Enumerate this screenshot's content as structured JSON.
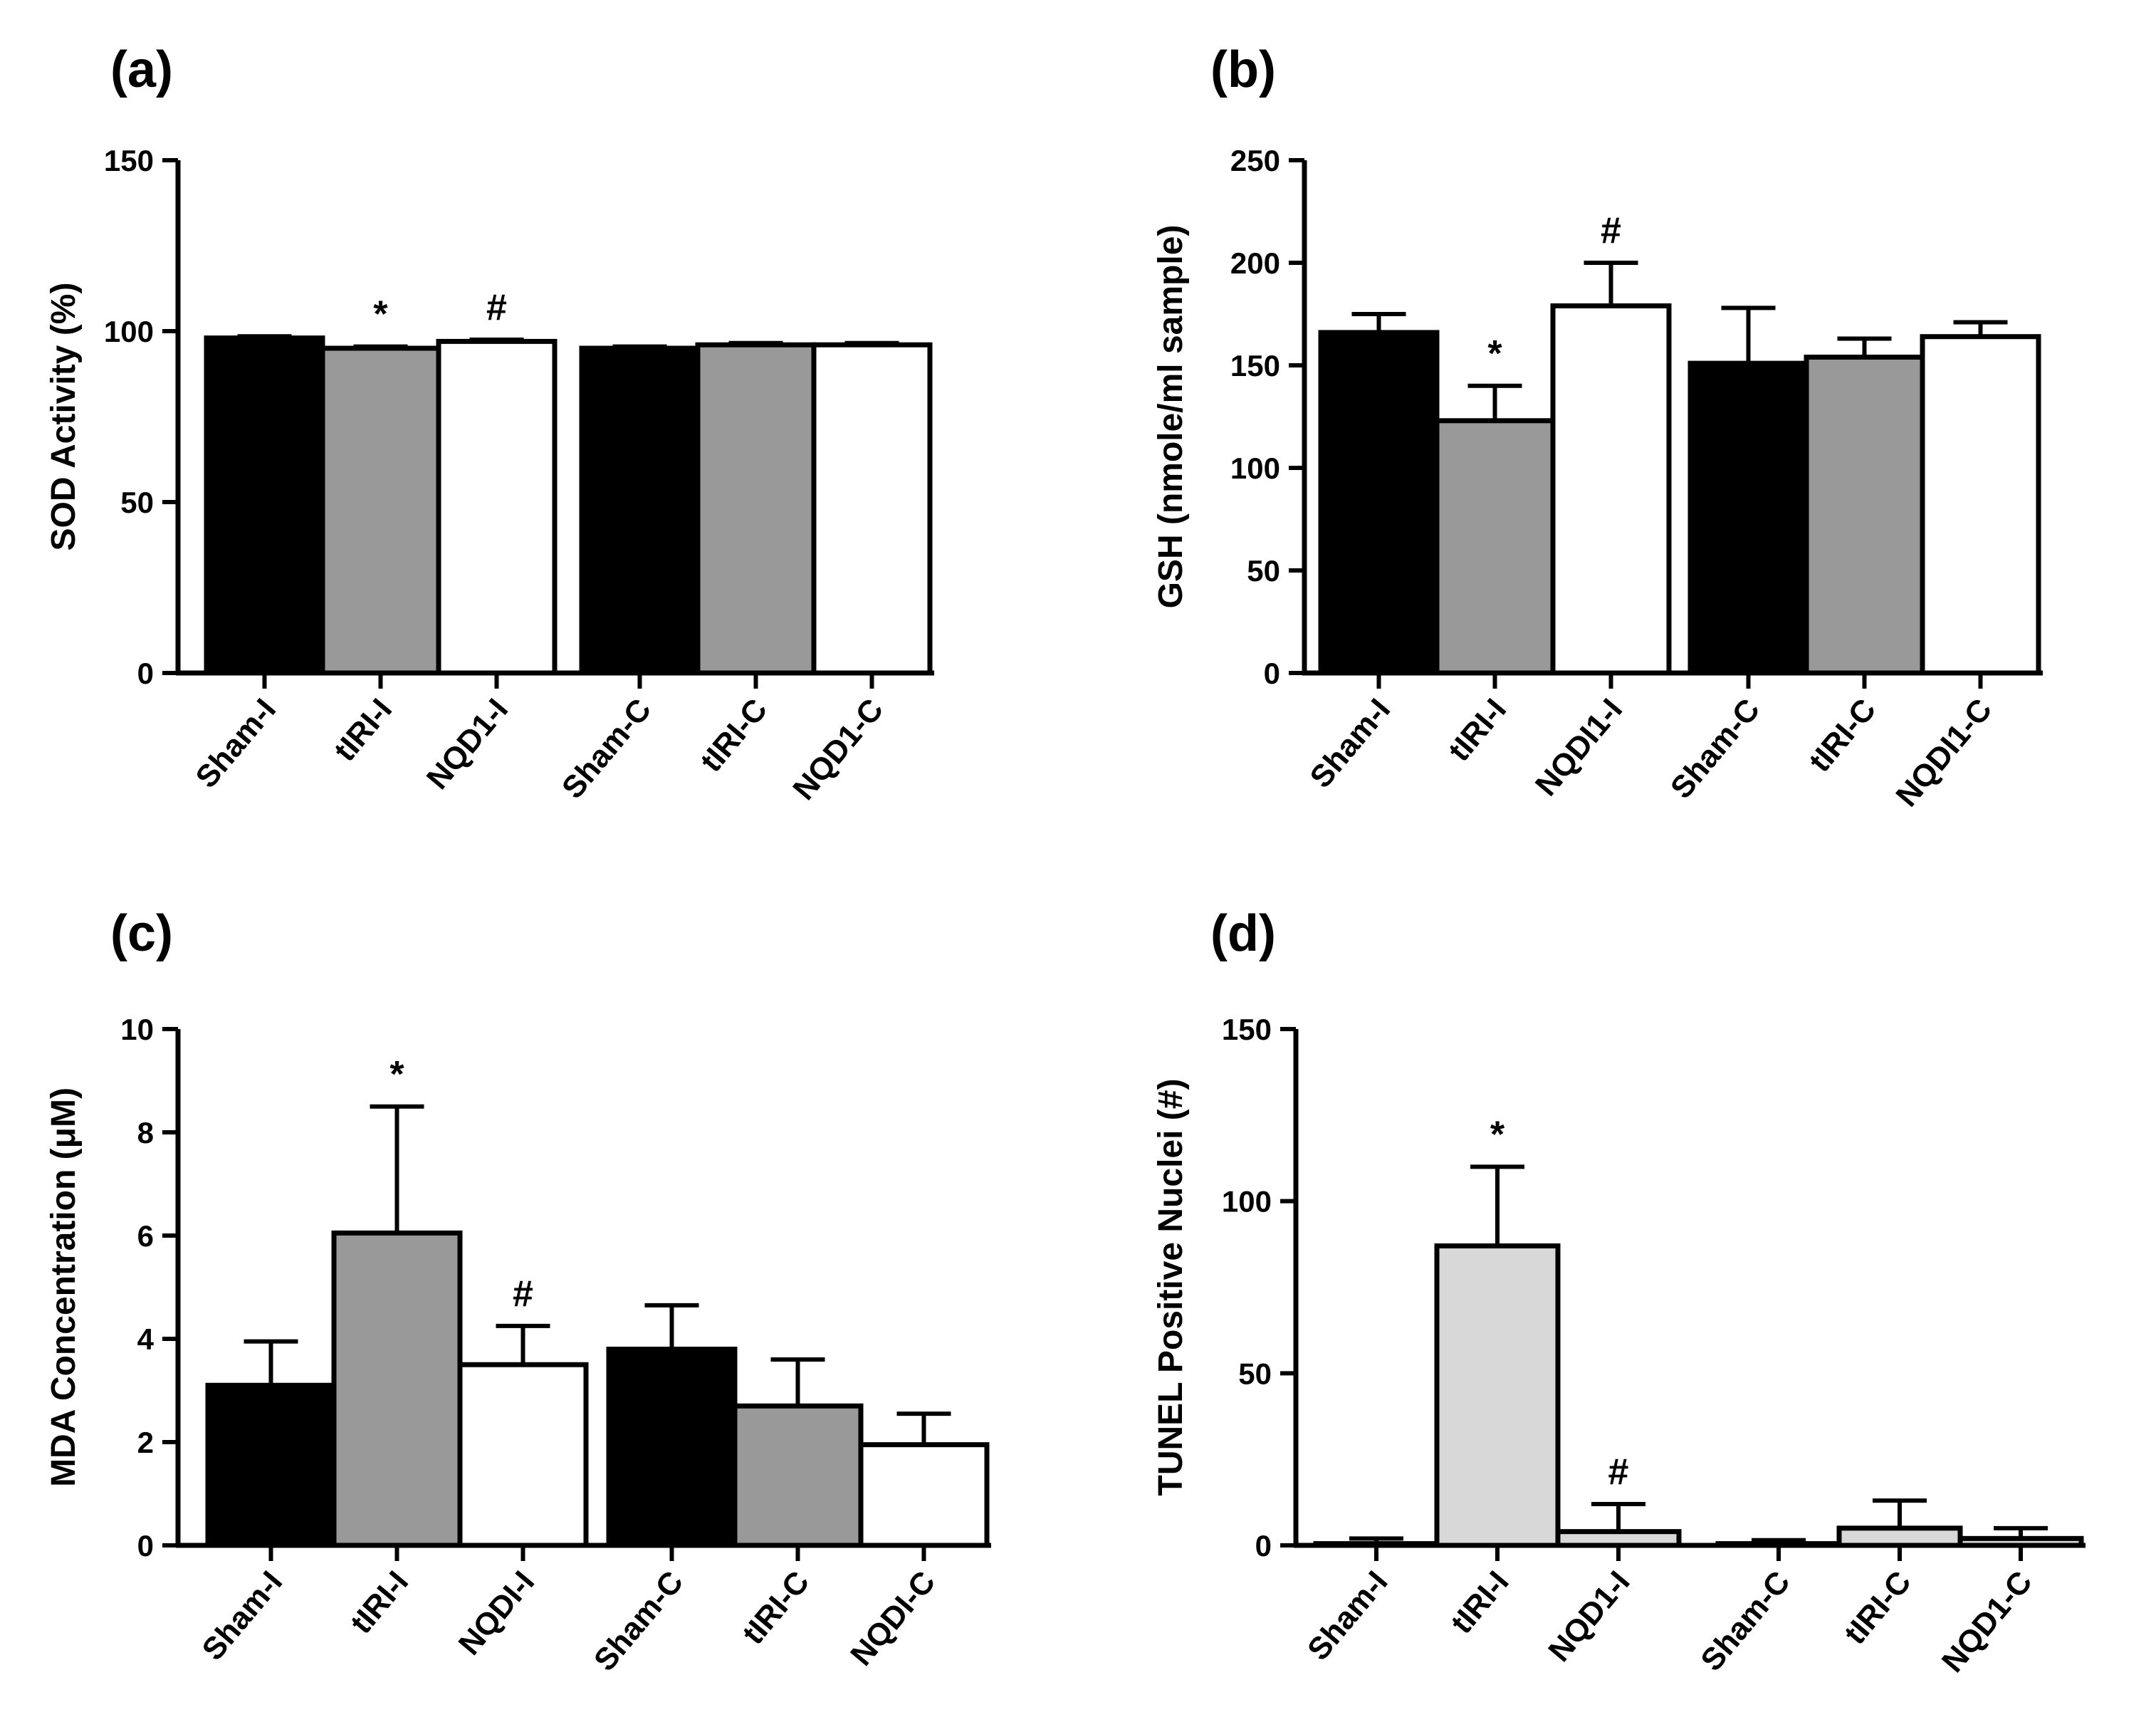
{
  "chart_data": [
    {
      "type": "bar",
      "panel_label": "(a)",
      "ylabel": "SOD Activity (%)",
      "ylim": [
        0,
        150
      ],
      "yticks": [
        "0",
        "50",
        "100",
        "150"
      ],
      "categories": [
        "Sham-I",
        "tIRI-I",
        "NQD1-I",
        "Sham-C",
        "tIRI-C",
        "NQD1-C"
      ],
      "values": [
        98,
        95,
        97,
        95,
        96,
        96
      ],
      "errors": [
        0.5,
        0.5,
        0.5,
        0.5,
        0.5,
        0.5
      ],
      "fills": [
        "#000000",
        "#999999",
        "#ffffff",
        "#000000",
        "#999999",
        "#ffffff"
      ],
      "annotations": [
        "",
        "*",
        "#",
        "",
        "",
        ""
      ]
    },
    {
      "type": "bar",
      "panel_label": "(b)",
      "ylabel": "GSH (nmole/ml sample)",
      "ylim": [
        0,
        250
      ],
      "yticks": [
        "0",
        "50",
        "100",
        "150",
        "200",
        "250"
      ],
      "categories": [
        "Sham-I",
        "tIRI-I",
        "NQDI1-I",
        "Sham-C",
        "tIRI-C",
        "NQDI1-C"
      ],
      "values": [
        166,
        123,
        179,
        151,
        154,
        164
      ],
      "errors": [
        9,
        17,
        21,
        27,
        9,
        7
      ],
      "fills": [
        "#000000",
        "#999999",
        "#ffffff",
        "#000000",
        "#999999",
        "#ffffff"
      ],
      "annotations": [
        "",
        "*",
        "#",
        "",
        "",
        ""
      ]
    },
    {
      "type": "bar",
      "panel_label": "(c)",
      "ylabel": "MDA Concentration (μM)",
      "ylim": [
        0,
        10
      ],
      "yticks": [
        "0",
        "2",
        "4",
        "6",
        "8",
        "10"
      ],
      "categories": [
        "Sham-I",
        "tIRI-I",
        "NQDI-I",
        "Sham-C",
        "tIRI-C",
        "NQDI-C"
      ],
      "values": [
        3.1,
        6.05,
        3.5,
        3.8,
        2.7,
        1.95
      ],
      "errors": [
        0.85,
        2.45,
        0.75,
        0.85,
        0.9,
        0.6
      ],
      "fills": [
        "#000000",
        "#999999",
        "#ffffff",
        "#000000",
        "#999999",
        "#ffffff"
      ],
      "annotations": [
        "",
        "*",
        "#",
        "",
        "",
        ""
      ]
    },
    {
      "type": "bar",
      "panel_label": "(d)",
      "ylabel": "TUNEL Positive Nuclei (#)",
      "ylim": [
        0,
        150
      ],
      "yticks": [
        "0",
        "50",
        "100",
        "150"
      ],
      "categories": [
        "Sham-I",
        "tIRI-I",
        "NQD1-I",
        "Sham-C",
        "tIRI-C",
        "NQD1-C"
      ],
      "values": [
        0.5,
        87,
        4,
        0.5,
        5,
        2
      ],
      "errors": [
        1.5,
        23,
        8,
        1,
        8,
        3
      ],
      "fills": [
        "#d8d8d8",
        "#d8d8d8",
        "#d8d8d8",
        "#d8d8d8",
        "#d8d8d8",
        "#d8d8d8"
      ],
      "annotations": [
        "",
        "*",
        "#",
        "",
        "",
        ""
      ]
    }
  ]
}
